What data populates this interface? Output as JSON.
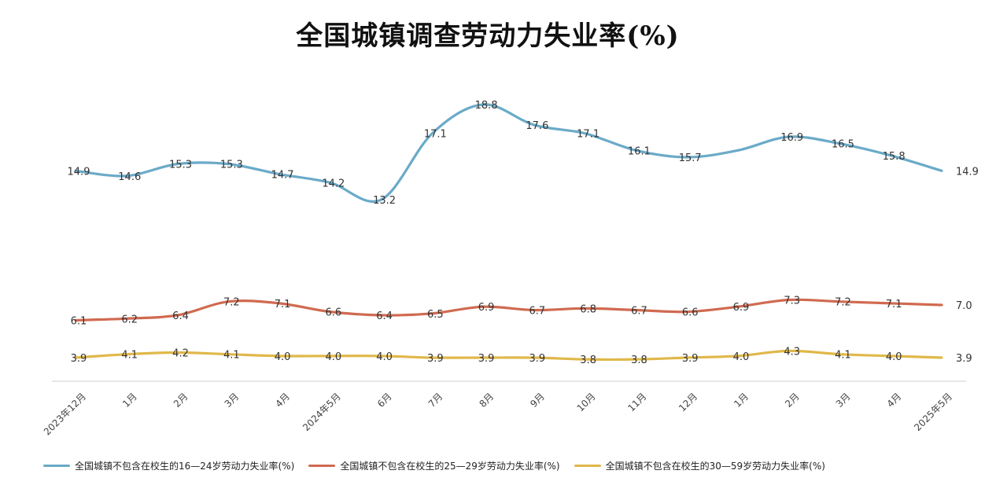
{
  "chart_data": {
    "type": "line",
    "title": "全国城镇调查劳动力失业率(%)",
    "categories": [
      "2023年12月",
      "1月",
      "2月",
      "3月",
      "4月",
      "2024年5月",
      "6月",
      "7月",
      "8月",
      "9月",
      "10月",
      "11月",
      "12月",
      "1月",
      "2月",
      "3月",
      "4月",
      "2025年5月"
    ],
    "series": [
      {
        "name": "全国城镇不包含在校生的16—24岁劳动力失业率(%)",
        "color": "#6aaac8",
        "values": [
          14.9,
          14.6,
          15.3,
          15.3,
          14.7,
          14.2,
          13.2,
          17.1,
          18.8,
          17.6,
          17.1,
          16.1,
          15.7,
          16.1,
          16.9,
          16.5,
          15.8,
          14.9
        ],
        "labels": [
          "14.9",
          "14.6",
          "15.3",
          "15.3",
          "14.7",
          "14.2",
          "13.2",
          "17.1",
          "18.8",
          "17.6",
          "17.1",
          "16.1",
          "15.7",
          "",
          "16.9",
          "16.5",
          "15.8",
          "14.9"
        ]
      },
      {
        "name": "全国城镇不包含在校生的25—29岁劳动力失业率(%)",
        "color": "#d06a50",
        "values": [
          6.1,
          6.2,
          6.4,
          7.2,
          7.1,
          6.6,
          6.4,
          6.5,
          6.9,
          6.7,
          6.8,
          6.7,
          6.6,
          6.9,
          7.3,
          7.2,
          7.1,
          7.0
        ],
        "labels": [
          "6.1",
          "6.2",
          "6.4",
          "7.2",
          "7.1",
          "6.6",
          "6.4",
          "6.5",
          "6.9",
          "6.7",
          "6.8",
          "6.7",
          "6.6",
          "6.9",
          "7.3",
          "7.2",
          "7.1",
          "7.0"
        ]
      },
      {
        "name": "全国城镇不包含在校生的30—59岁劳动力失业率(%)",
        "color": "#e0b84a",
        "values": [
          3.9,
          4.1,
          4.2,
          4.1,
          4.0,
          4.0,
          4.0,
          3.9,
          3.9,
          3.9,
          3.8,
          3.8,
          3.9,
          4.0,
          4.3,
          4.1,
          4.0,
          3.9
        ],
        "labels": [
          "3.9",
          "4.1",
          "4.2",
          "4.1",
          "4.0",
          "4.0",
          "4.0",
          "3.9",
          "3.9",
          "3.9",
          "3.8",
          "3.8",
          "3.9",
          "4.0",
          "4.3",
          "4.1",
          "4.0",
          "3.9"
        ]
      }
    ],
    "ylim": [
      0,
      21
    ],
    "grid": false,
    "legend_position": "bottom"
  }
}
